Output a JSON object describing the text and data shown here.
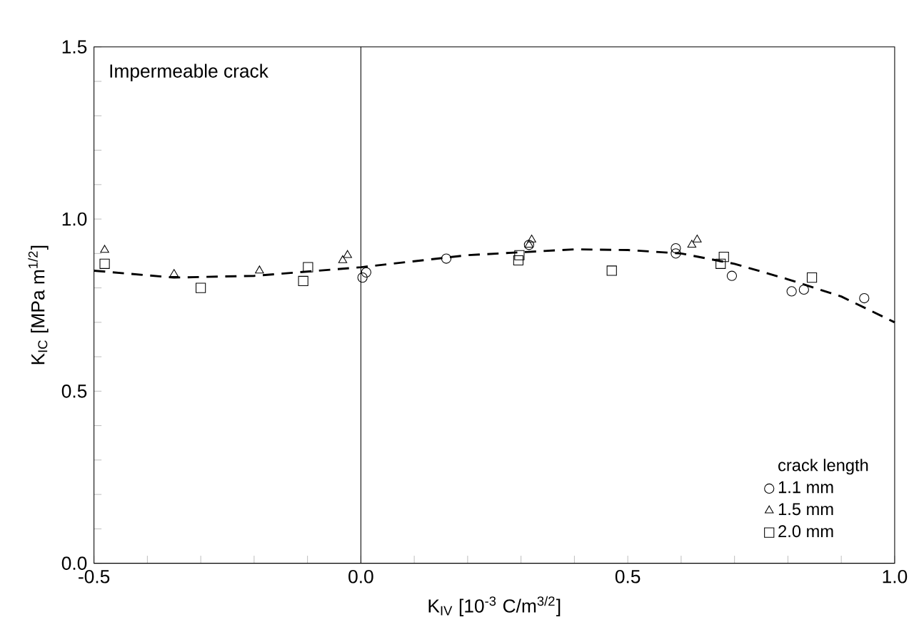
{
  "chart_data": {
    "type": "scatter",
    "xlabel": "K$_{IV}$ [10$^{-3}$ C/m$^{3/2}$]",
    "ylabel": "K$_{IC}$ [MPa m$^{1/2}$]",
    "legend_title": "crack length",
    "legend": "bottom right",
    "grid": false,
    "annotations": [
      "Impermeable crack"
    ],
    "xlim": [
      -0.5,
      1.0
    ],
    "ylim": [
      0.0,
      1.5
    ],
    "xticks": [
      {
        "value": -0.5,
        "label": "-0.5"
      },
      {
        "value": -0.4,
        "label": null
      },
      {
        "value": -0.3,
        "label": null
      },
      {
        "value": -0.2,
        "label": null
      },
      {
        "value": -0.1,
        "label": null
      },
      {
        "value": 0.0,
        "label": "0.0"
      },
      {
        "value": 0.1,
        "label": null
      },
      {
        "value": 0.2,
        "label": null
      },
      {
        "value": 0.3,
        "label": null
      },
      {
        "value": 0.4,
        "label": null
      },
      {
        "value": 0.5,
        "label": "0.5"
      },
      {
        "value": 0.6,
        "label": null
      },
      {
        "value": 0.7,
        "label": null
      },
      {
        "value": 0.8,
        "label": null
      },
      {
        "value": 0.9,
        "label": null
      },
      {
        "value": 1.0,
        "label": "1.0"
      }
    ],
    "yticks": [
      {
        "value": 0.0,
        "label": "0.0"
      },
      {
        "value": 0.1,
        "label": null
      },
      {
        "value": 0.2,
        "label": null
      },
      {
        "value": 0.3,
        "label": null
      },
      {
        "value": 0.4,
        "label": null
      },
      {
        "value": 0.5,
        "label": "0.5"
      },
      {
        "value": 0.6,
        "label": null
      },
      {
        "value": 0.7,
        "label": null
      },
      {
        "value": 0.8,
        "label": null
      },
      {
        "value": 0.9,
        "label": null
      },
      {
        "value": 1.0,
        "label": "1.0"
      },
      {
        "value": 1.1,
        "label": null
      },
      {
        "value": 1.2,
        "label": null
      },
      {
        "value": 1.3,
        "label": null
      },
      {
        "value": 1.4,
        "label": null
      },
      {
        "value": 1.5,
        "label": "1.5"
      }
    ],
    "ref_lines": [
      {
        "axis": "x",
        "value": 0.0,
        "color": "#000000",
        "line_style": "solid"
      }
    ],
    "series": [
      {
        "name": "1.1 mm",
        "color": "#000000",
        "marker": "circle",
        "x": [
          0.003,
          0.01,
          0.16,
          0.315,
          0.59,
          0.59,
          0.695,
          0.807,
          0.83,
          0.943
        ],
        "values": [
          0.83,
          0.845,
          0.885,
          0.925,
          0.9,
          0.915,
          0.835,
          0.79,
          0.795,
          0.77
        ]
      },
      {
        "name": "1.5 mm",
        "color": "#000000",
        "marker": "triangle",
        "x": [
          -0.48,
          -0.35,
          -0.19,
          -0.034,
          -0.025,
          0.315,
          0.32,
          0.62,
          0.63
        ],
        "values": [
          0.91,
          0.84,
          0.85,
          0.88,
          0.895,
          0.925,
          0.94,
          0.925,
          0.94
        ]
      },
      {
        "name": "2.0 mm",
        "color": "#000000",
        "marker": "square",
        "x": [
          -0.48,
          -0.3,
          -0.108,
          -0.099,
          0.295,
          0.297,
          0.47,
          0.674,
          0.68,
          0.845
        ],
        "values": [
          0.87,
          0.8,
          0.82,
          0.86,
          0.88,
          0.895,
          0.85,
          0.87,
          0.89,
          0.83
        ]
      },
      {
        "type": "line",
        "color": "#000000",
        "marker": "none",
        "line_style": "dashed",
        "x": [
          -0.5,
          -0.35,
          -0.2,
          0.0,
          0.2,
          0.4,
          0.5,
          0.6,
          0.7,
          0.8,
          0.9,
          1.0
        ],
        "values": [
          0.85,
          0.83,
          0.835,
          0.86,
          0.895,
          0.912,
          0.91,
          0.9,
          0.87,
          0.825,
          0.775,
          0.7
        ]
      }
    ]
  }
}
